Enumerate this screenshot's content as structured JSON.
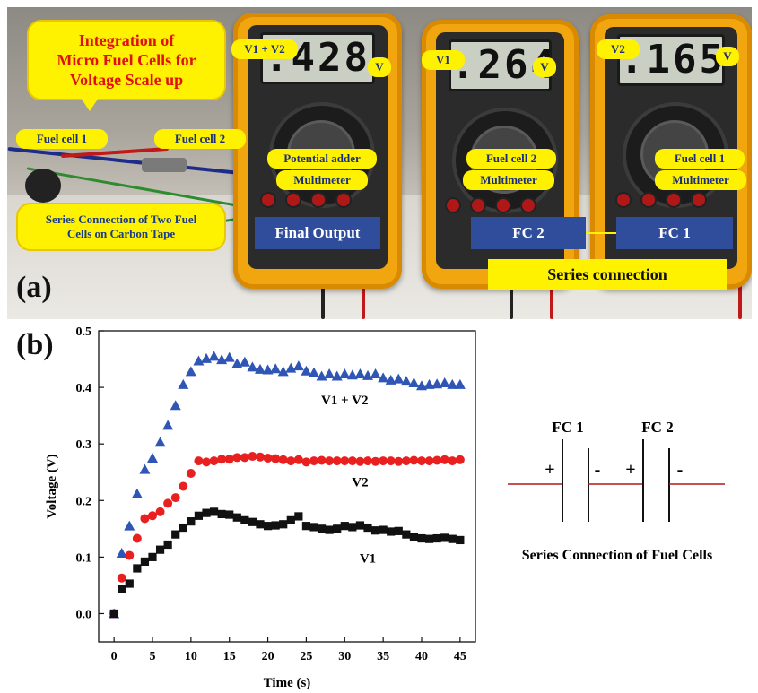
{
  "panel_a": {
    "tag": "(a)",
    "title_bubble": "Integration of\nMicro Fuel Cells for\nVoltage Scale up",
    "fuel_cell_1": "Fuel cell 1",
    "fuel_cell_2": "Fuel cell 2",
    "series_note": "Series Connection of Two Fuel\nCells on Carbon Tape",
    "meters": [
      {
        "tag": "V1 + V2",
        "reading": ".428",
        "unit": "V",
        "role": "Potential adder",
        "kind": "Multimeter",
        "box": "Final Output"
      },
      {
        "tag": "V1",
        "reading": ".264",
        "unit": "V",
        "role": "Fuel cell 2",
        "kind": "Multimeter",
        "box": "FC 2"
      },
      {
        "tag": "V2",
        "reading": ".165",
        "unit": "V",
        "role": "Fuel cell 1",
        "kind": "Multimeter",
        "box": "FC 1"
      }
    ],
    "series_connection": "Series connection"
  },
  "panel_b": {
    "tag": "(b)",
    "circuit": {
      "fc1": "FC 1",
      "fc2": "FC 2",
      "plus": "+",
      "minus": "-",
      "caption": "Series Connection of Fuel Cells"
    }
  },
  "chart_data": {
    "type": "scatter",
    "xlabel": "Time (s)",
    "ylabel": "Voltage (V)",
    "xlim": [
      -2,
      47
    ],
    "ylim": [
      -0.05,
      0.5
    ],
    "xticks": [
      0,
      5,
      10,
      15,
      20,
      25,
      30,
      35,
      40,
      45
    ],
    "yticks": [
      0.0,
      0.1,
      0.2,
      0.3,
      0.4,
      0.5
    ],
    "ytick_labels": [
      "0.0",
      "0.1",
      "0.2",
      "0.3",
      "0.4",
      "0.5"
    ],
    "grid": false,
    "x": [
      0,
      1,
      2,
      3,
      4,
      5,
      6,
      7,
      8,
      9,
      10,
      11,
      12,
      13,
      14,
      15,
      16,
      17,
      18,
      19,
      20,
      21,
      22,
      23,
      24,
      25,
      26,
      27,
      28,
      29,
      30,
      31,
      32,
      33,
      34,
      35,
      36,
      37,
      38,
      39,
      40,
      41,
      42,
      43,
      44,
      45
    ],
    "series": [
      {
        "name": "V1 + V2",
        "marker": "triangle",
        "color": "#2f55b5",
        "values": [
          0.0,
          0.107,
          0.155,
          0.212,
          0.255,
          0.275,
          0.303,
          0.333,
          0.368,
          0.405,
          0.428,
          0.447,
          0.451,
          0.455,
          0.449,
          0.453,
          0.442,
          0.445,
          0.436,
          0.432,
          0.431,
          0.433,
          0.428,
          0.434,
          0.438,
          0.429,
          0.426,
          0.42,
          0.424,
          0.42,
          0.424,
          0.422,
          0.424,
          0.421,
          0.424,
          0.417,
          0.413,
          0.415,
          0.411,
          0.408,
          0.403,
          0.405,
          0.406,
          0.408,
          0.405,
          0.405
        ]
      },
      {
        "name": "V2",
        "marker": "circle",
        "color": "#e82020",
        "values": [
          0.0,
          0.063,
          0.103,
          0.133,
          0.168,
          0.173,
          0.18,
          0.195,
          0.205,
          0.225,
          0.248,
          0.27,
          0.268,
          0.27,
          0.273,
          0.273,
          0.276,
          0.276,
          0.278,
          0.277,
          0.275,
          0.274,
          0.272,
          0.27,
          0.272,
          0.268,
          0.27,
          0.271,
          0.27,
          0.27,
          0.27,
          0.27,
          0.269,
          0.27,
          0.269,
          0.27,
          0.27,
          0.269,
          0.27,
          0.271,
          0.27,
          0.27,
          0.271,
          0.272,
          0.27,
          0.272
        ]
      },
      {
        "name": "V1",
        "marker": "square",
        "color": "#111111",
        "values": [
          0.0,
          0.043,
          0.053,
          0.08,
          0.092,
          0.1,
          0.113,
          0.122,
          0.14,
          0.152,
          0.163,
          0.173,
          0.178,
          0.18,
          0.176,
          0.175,
          0.17,
          0.165,
          0.162,
          0.158,
          0.155,
          0.156,
          0.158,
          0.165,
          0.172,
          0.155,
          0.153,
          0.15,
          0.148,
          0.15,
          0.155,
          0.153,
          0.156,
          0.152,
          0.147,
          0.148,
          0.145,
          0.146,
          0.14,
          0.135,
          0.133,
          0.132,
          0.133,
          0.134,
          0.132,
          0.13
        ]
      }
    ],
    "annotations": [
      "V1 + V2",
      "V2",
      "V1"
    ]
  }
}
